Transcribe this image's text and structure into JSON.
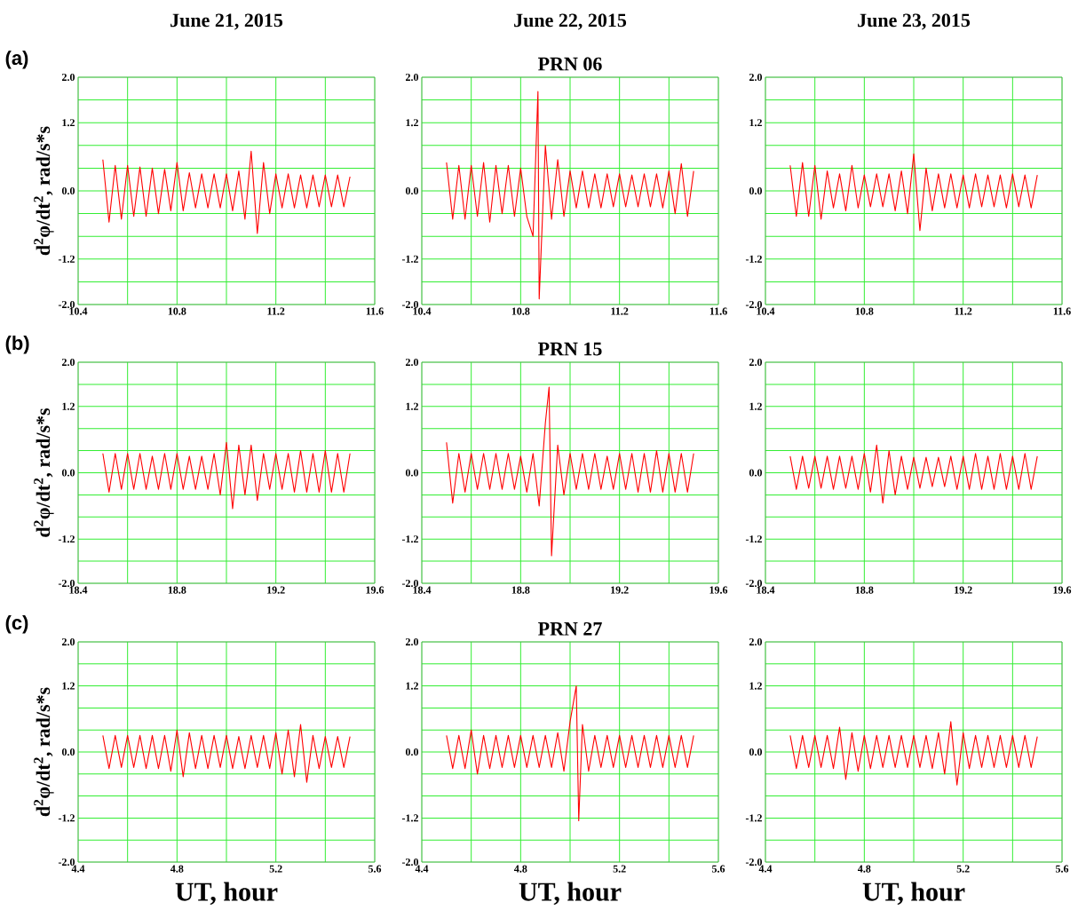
{
  "chart_data": [
    {
      "type": "line",
      "title": "June 21, 2015",
      "annotations": [
        "(a)"
      ],
      "ylabel": "d$^{2}$φ/dt$^{2}$,  rad/s*s",
      "grid": true,
      "xlim": [
        10.4,
        11.6
      ],
      "ylim": [
        -2.0,
        2.0
      ],
      "xticks": [
        10.4,
        {
          "value": 10.6,
          "label": null
        },
        10.8,
        {
          "value": 11.0,
          "label": null
        },
        11.2,
        {
          "value": 11.4,
          "label": null
        },
        11.6
      ],
      "yticks": [
        {
          "value": -2.0,
          "label": "-2.0"
        },
        {
          "value": -1.6,
          "label": null
        },
        {
          "value": -1.2,
          "label": "-1.2"
        },
        {
          "value": -0.8,
          "label": null
        },
        {
          "value": -0.4,
          "label": null
        },
        {
          "value": 0,
          "label": "0.0"
        },
        {
          "value": 0.4,
          "label": null
        },
        {
          "value": 0.8,
          "label": null
        },
        {
          "value": 1.2,
          "label": "1.2"
        },
        {
          "value": 1.6,
          "label": null
        },
        {
          "value": 2.0,
          "label": "2.0"
        }
      ],
      "series": [
        {
          "color": "#ff0000",
          "x": [
            10.5,
            10.525,
            10.55,
            10.575,
            10.6,
            10.625,
            10.65,
            10.675,
            10.7,
            10.725,
            10.75,
            10.775,
            10.8,
            10.825,
            10.85,
            10.875,
            10.9,
            10.925,
            10.95,
            10.975,
            11.0,
            11.025,
            11.05,
            11.075,
            11.1,
            11.125,
            11.15,
            11.175,
            11.2,
            11.225,
            11.25,
            11.275,
            11.3,
            11.325,
            11.35,
            11.375,
            11.4,
            11.425,
            11.45,
            11.475,
            11.5
          ],
          "values": [
            0.55,
            -0.55,
            0.45,
            -0.5,
            0.45,
            -0.45,
            0.42,
            -0.45,
            0.4,
            -0.4,
            0.38,
            -0.35,
            0.5,
            -0.35,
            0.32,
            -0.3,
            0.3,
            -0.3,
            0.3,
            -0.3,
            0.3,
            -0.35,
            0.35,
            -0.5,
            0.7,
            -0.75,
            0.5,
            -0.4,
            0.3,
            -0.3,
            0.3,
            -0.3,
            0.28,
            -0.3,
            0.28,
            -0.28,
            0.28,
            -0.28,
            0.28,
            -0.28,
            0.25
          ]
        }
      ]
    },
    {
      "type": "line",
      "title": "June 22, 2015",
      "subtitle": "PRN 06",
      "grid": true,
      "xlim": [
        10.4,
        11.6
      ],
      "ylim": [
        -2.0,
        2.0
      ],
      "xticks": [
        10.4,
        {
          "value": 10.6,
          "label": null
        },
        10.8,
        {
          "value": 11.0,
          "label": null
        },
        11.2,
        {
          "value": 11.4,
          "label": null
        },
        11.6
      ],
      "yticks": [
        {
          "value": -2.0,
          "label": "-2.0"
        },
        {
          "value": -1.6,
          "label": null
        },
        {
          "value": -1.2,
          "label": "-1.2"
        },
        {
          "value": -0.8,
          "label": null
        },
        {
          "value": -0.4,
          "label": null
        },
        {
          "value": 0,
          "label": "0.0"
        },
        {
          "value": 0.4,
          "label": null
        },
        {
          "value": 0.8,
          "label": null
        },
        {
          "value": 1.2,
          "label": "1.2"
        },
        {
          "value": 1.6,
          "label": null
        },
        {
          "value": 2.0,
          "label": "2.0"
        }
      ],
      "series": [
        {
          "color": "#ff0000",
          "x": [
            10.5,
            10.525,
            10.55,
            10.575,
            10.6,
            10.625,
            10.65,
            10.675,
            10.7,
            10.725,
            10.75,
            10.775,
            10.8,
            10.825,
            10.85,
            10.87,
            10.875,
            10.9,
            10.925,
            10.95,
            10.975,
            11.0,
            11.025,
            11.05,
            11.075,
            11.1,
            11.125,
            11.15,
            11.175,
            11.2,
            11.225,
            11.25,
            11.275,
            11.3,
            11.325,
            11.35,
            11.375,
            11.4,
            11.425,
            11.45,
            11.475,
            11.5
          ],
          "values": [
            0.5,
            -0.5,
            0.45,
            -0.5,
            0.45,
            -0.45,
            0.5,
            -0.55,
            0.45,
            -0.4,
            0.45,
            -0.45,
            0.4,
            -0.45,
            -0.8,
            1.75,
            -1.9,
            0.8,
            -0.5,
            0.55,
            -0.45,
            0.35,
            -0.3,
            0.35,
            -0.3,
            0.3,
            -0.3,
            0.3,
            -0.28,
            0.3,
            -0.28,
            0.28,
            -0.28,
            0.3,
            -0.28,
            0.3,
            -0.3,
            0.35,
            -0.4,
            0.48,
            -0.45,
            0.35
          ]
        }
      ]
    },
    {
      "type": "line",
      "title": "June 23, 2015",
      "grid": true,
      "xlim": [
        10.4,
        11.6
      ],
      "ylim": [
        -2.0,
        2.0
      ],
      "xticks": [
        10.4,
        {
          "value": 10.6,
          "label": null
        },
        10.8,
        {
          "value": 11.0,
          "label": null
        },
        11.2,
        {
          "value": 11.4,
          "label": null
        },
        11.6
      ],
      "yticks": [
        {
          "value": -2.0,
          "label": "-2.0"
        },
        {
          "value": -1.6,
          "label": null
        },
        {
          "value": -1.2,
          "label": "-1.2"
        },
        {
          "value": -0.8,
          "label": null
        },
        {
          "value": -0.4,
          "label": null
        },
        {
          "value": 0,
          "label": "0.0"
        },
        {
          "value": 0.4,
          "label": null
        },
        {
          "value": 0.8,
          "label": null
        },
        {
          "value": 1.2,
          "label": "1.2"
        },
        {
          "value": 1.6,
          "label": null
        },
        {
          "value": 2.0,
          "label": "2.0"
        }
      ],
      "series": [
        {
          "color": "#ff0000",
          "x": [
            10.5,
            10.525,
            10.55,
            10.575,
            10.6,
            10.625,
            10.65,
            10.675,
            10.7,
            10.725,
            10.75,
            10.775,
            10.8,
            10.825,
            10.85,
            10.875,
            10.9,
            10.925,
            10.95,
            10.975,
            11.0,
            11.025,
            11.05,
            11.075,
            11.1,
            11.125,
            11.15,
            11.175,
            11.2,
            11.225,
            11.25,
            11.275,
            11.3,
            11.325,
            11.35,
            11.375,
            11.4,
            11.425,
            11.45,
            11.475,
            11.5
          ],
          "values": [
            0.45,
            -0.45,
            0.5,
            -0.45,
            0.45,
            -0.5,
            0.35,
            -0.3,
            0.3,
            -0.35,
            0.45,
            -0.3,
            0.28,
            -0.28,
            0.3,
            -0.28,
            0.3,
            -0.35,
            0.35,
            -0.4,
            0.65,
            -0.7,
            0.4,
            -0.35,
            0.3,
            -0.3,
            0.3,
            -0.3,
            0.28,
            -0.3,
            0.3,
            -0.28,
            0.28,
            -0.28,
            0.28,
            -0.3,
            0.3,
            -0.28,
            0.28,
            -0.3,
            0.28
          ]
        }
      ]
    },
    {
      "type": "line",
      "annotations": [
        "(b)"
      ],
      "ylabel": "d$^{2}$φ/dt$^{2}$,  rad/s*s",
      "grid": true,
      "xlim": [
        18.4,
        19.6
      ],
      "ylim": [
        -2.0,
        2.0
      ],
      "xticks": [
        18.4,
        {
          "value": 18.6,
          "label": null
        },
        18.8,
        {
          "value": 19.0,
          "label": null
        },
        19.2,
        {
          "value": 19.4,
          "label": null
        },
        19.6
      ],
      "yticks": [
        {
          "value": -2.0,
          "label": "-2.0"
        },
        {
          "value": -1.6,
          "label": null
        },
        {
          "value": -1.2,
          "label": "-1.2"
        },
        {
          "value": -0.8,
          "label": null
        },
        {
          "value": -0.4,
          "label": null
        },
        {
          "value": 0,
          "label": "0.0"
        },
        {
          "value": 0.4,
          "label": null
        },
        {
          "value": 0.8,
          "label": null
        },
        {
          "value": 1.2,
          "label": "1.2"
        },
        {
          "value": 1.6,
          "label": null
        },
        {
          "value": 2.0,
          "label": "2.0"
        }
      ],
      "series": [
        {
          "color": "#ff0000",
          "x": [
            18.5,
            18.525,
            18.55,
            18.575,
            18.6,
            18.625,
            18.65,
            18.675,
            18.7,
            18.725,
            18.75,
            18.775,
            18.8,
            18.825,
            18.85,
            18.875,
            18.9,
            18.925,
            18.95,
            18.975,
            19.0,
            19.025,
            19.05,
            19.075,
            19.1,
            19.125,
            19.15,
            19.175,
            19.2,
            19.225,
            19.25,
            19.275,
            19.3,
            19.325,
            19.35,
            19.375,
            19.4,
            19.425,
            19.45,
            19.475,
            19.5
          ],
          "values": [
            0.35,
            -0.35,
            0.35,
            -0.3,
            0.35,
            -0.3,
            0.35,
            -0.3,
            0.3,
            -0.3,
            0.35,
            -0.3,
            0.35,
            -0.3,
            0.3,
            -0.3,
            0.3,
            -0.3,
            0.35,
            -0.4,
            0.55,
            -0.65,
            0.5,
            -0.4,
            0.5,
            -0.5,
            0.35,
            -0.3,
            0.35,
            -0.3,
            0.35,
            -0.35,
            0.4,
            -0.35,
            0.35,
            -0.35,
            0.4,
            -0.35,
            0.35,
            -0.35,
            0.35
          ]
        }
      ]
    },
    {
      "type": "line",
      "subtitle": "PRN 15",
      "grid": true,
      "xlim": [
        18.4,
        19.6
      ],
      "ylim": [
        -2.0,
        2.0
      ],
      "xticks": [
        18.4,
        {
          "value": 18.6,
          "label": null
        },
        18.8,
        {
          "value": 19.0,
          "label": null
        },
        19.2,
        {
          "value": 19.4,
          "label": null
        },
        19.6
      ],
      "yticks": [
        {
          "value": -2.0,
          "label": "-2.0"
        },
        {
          "value": -1.6,
          "label": null
        },
        {
          "value": -1.2,
          "label": "-1.2"
        },
        {
          "value": -0.8,
          "label": null
        },
        {
          "value": -0.4,
          "label": null
        },
        {
          "value": 0,
          "label": "0.0"
        },
        {
          "value": 0.4,
          "label": null
        },
        {
          "value": 0.8,
          "label": null
        },
        {
          "value": 1.2,
          "label": "1.2"
        },
        {
          "value": 1.6,
          "label": null
        },
        {
          "value": 2.0,
          "label": "2.0"
        }
      ],
      "series": [
        {
          "color": "#ff0000",
          "x": [
            18.5,
            18.525,
            18.55,
            18.575,
            18.6,
            18.625,
            18.65,
            18.675,
            18.7,
            18.725,
            18.75,
            18.775,
            18.8,
            18.825,
            18.85,
            18.875,
            18.9,
            18.915,
            18.925,
            18.95,
            18.975,
            19.0,
            19.025,
            19.05,
            19.075,
            19.1,
            19.125,
            19.15,
            19.175,
            19.2,
            19.225,
            19.25,
            19.275,
            19.3,
            19.325,
            19.35,
            19.375,
            19.4,
            19.425,
            19.45,
            19.475,
            19.5
          ],
          "values": [
            0.55,
            -0.55,
            0.35,
            -0.35,
            0.35,
            -0.3,
            0.35,
            -0.3,
            0.35,
            -0.3,
            0.35,
            -0.3,
            0.3,
            -0.35,
            0.35,
            -0.6,
            0.9,
            1.55,
            -1.5,
            0.5,
            -0.4,
            0.35,
            -0.3,
            0.35,
            -0.3,
            0.35,
            -0.3,
            0.3,
            -0.3,
            0.35,
            -0.3,
            0.35,
            -0.35,
            0.35,
            -0.35,
            0.4,
            -0.35,
            0.35,
            -0.35,
            0.35,
            -0.35,
            0.35
          ]
        }
      ]
    },
    {
      "type": "line",
      "grid": true,
      "xlim": [
        18.4,
        19.6
      ],
      "ylim": [
        -2.0,
        2.0
      ],
      "xticks": [
        18.4,
        {
          "value": 18.6,
          "label": null
        },
        18.8,
        {
          "value": 19.0,
          "label": null
        },
        19.2,
        {
          "value": 19.4,
          "label": null
        },
        19.6
      ],
      "yticks": [
        {
          "value": -2.0,
          "label": "-2.0"
        },
        {
          "value": -1.6,
          "label": null
        },
        {
          "value": -1.2,
          "label": "-1.2"
        },
        {
          "value": -0.8,
          "label": null
        },
        {
          "value": -0.4,
          "label": null
        },
        {
          "value": 0,
          "label": "0.0"
        },
        {
          "value": 0.4,
          "label": null
        },
        {
          "value": 0.8,
          "label": null
        },
        {
          "value": 1.2,
          "label": "1.2"
        },
        {
          "value": 1.6,
          "label": null
        },
        {
          "value": 2.0,
          "label": "2.0"
        }
      ],
      "series": [
        {
          "color": "#ff0000",
          "x": [
            18.5,
            18.525,
            18.55,
            18.575,
            18.6,
            18.625,
            18.65,
            18.675,
            18.7,
            18.725,
            18.75,
            18.775,
            18.8,
            18.825,
            18.85,
            18.875,
            18.9,
            18.925,
            18.95,
            18.975,
            19.0,
            19.025,
            19.05,
            19.075,
            19.1,
            19.125,
            19.15,
            19.175,
            19.2,
            19.225,
            19.25,
            19.275,
            19.3,
            19.325,
            19.35,
            19.375,
            19.4,
            19.425,
            19.45,
            19.475,
            19.5
          ],
          "values": [
            0.3,
            -0.3,
            0.3,
            -0.28,
            0.3,
            -0.28,
            0.3,
            -0.3,
            0.3,
            -0.28,
            0.3,
            -0.3,
            0.35,
            -0.35,
            0.5,
            -0.55,
            0.4,
            -0.4,
            0.3,
            -0.3,
            0.28,
            -0.28,
            0.28,
            -0.25,
            0.28,
            -0.25,
            0.3,
            -0.3,
            0.3,
            -0.3,
            0.35,
            -0.3,
            0.3,
            -0.3,
            0.35,
            -0.3,
            0.3,
            -0.3,
            0.35,
            -0.3,
            0.3
          ]
        }
      ]
    },
    {
      "type": "line",
      "annotations": [
        "(c)"
      ],
      "ylabel": "d$^{2}$φ/dt$^{2}$,  rad/s*s",
      "xlabel": "UT, hour",
      "grid": true,
      "xlim": [
        4.4,
        5.6
      ],
      "ylim": [
        -2.0,
        2.0
      ],
      "xticks": [
        4.4,
        {
          "value": 4.6,
          "label": null
        },
        4.8,
        {
          "value": 5.0,
          "label": null
        },
        5.2,
        {
          "value": 5.4,
          "label": null
        },
        5.6
      ],
      "yticks": [
        {
          "value": -2.0,
          "label": "-2.0"
        },
        {
          "value": -1.6,
          "label": null
        },
        {
          "value": -1.2,
          "label": "-1.2"
        },
        {
          "value": -0.8,
          "label": null
        },
        {
          "value": -0.4,
          "label": null
        },
        {
          "value": 0,
          "label": "0.0"
        },
        {
          "value": 0.4,
          "label": null
        },
        {
          "value": 0.8,
          "label": null
        },
        {
          "value": 1.2,
          "label": "1.2"
        },
        {
          "value": 1.6,
          "label": null
        },
        {
          "value": 2.0,
          "label": "2.0"
        }
      ],
      "series": [
        {
          "color": "#ff0000",
          "x": [
            4.5,
            4.525,
            4.55,
            4.575,
            4.6,
            4.625,
            4.65,
            4.675,
            4.7,
            4.725,
            4.75,
            4.775,
            4.8,
            4.825,
            4.85,
            4.875,
            4.9,
            4.925,
            4.95,
            4.975,
            5.0,
            5.025,
            5.05,
            5.075,
            5.1,
            5.125,
            5.15,
            5.175,
            5.2,
            5.225,
            5.25,
            5.275,
            5.3,
            5.325,
            5.35,
            5.375,
            5.4,
            5.425,
            5.45,
            5.475,
            5.5
          ],
          "values": [
            0.3,
            -0.3,
            0.3,
            -0.28,
            0.3,
            -0.28,
            0.3,
            -0.3,
            0.3,
            -0.3,
            0.3,
            -0.35,
            0.4,
            -0.45,
            0.35,
            -0.3,
            0.3,
            -0.3,
            0.3,
            -0.28,
            0.3,
            -0.3,
            0.28,
            -0.3,
            0.3,
            -0.28,
            0.3,
            -0.3,
            0.35,
            -0.4,
            0.4,
            -0.45,
            0.5,
            -0.55,
            0.3,
            -0.3,
            0.28,
            -0.28,
            0.28,
            -0.28,
            0.28
          ]
        }
      ]
    },
    {
      "type": "line",
      "subtitle": "PRN 27",
      "xlabel": "UT, hour",
      "grid": true,
      "xlim": [
        4.4,
        5.6
      ],
      "ylim": [
        -2.0,
        2.0
      ],
      "xticks": [
        4.4,
        {
          "value": 4.6,
          "label": null
        },
        4.8,
        {
          "value": 5.0,
          "label": null
        },
        5.2,
        {
          "value": 5.4,
          "label": null
        },
        5.6
      ],
      "yticks": [
        {
          "value": -2.0,
          "label": "-2.0"
        },
        {
          "value": -1.6,
          "label": null
        },
        {
          "value": -1.2,
          "label": "-1.2"
        },
        {
          "value": -0.8,
          "label": null
        },
        {
          "value": -0.4,
          "label": null
        },
        {
          "value": 0,
          "label": "0.0"
        },
        {
          "value": 0.4,
          "label": null
        },
        {
          "value": 0.8,
          "label": null
        },
        {
          "value": 1.2,
          "label": "1.2"
        },
        {
          "value": 1.6,
          "label": null
        },
        {
          "value": 2.0,
          "label": "2.0"
        }
      ],
      "series": [
        {
          "color": "#ff0000",
          "x": [
            4.5,
            4.525,
            4.55,
            4.575,
            4.6,
            4.625,
            4.65,
            4.675,
            4.7,
            4.725,
            4.75,
            4.775,
            4.8,
            4.825,
            4.85,
            4.875,
            4.9,
            4.925,
            4.95,
            4.975,
            5.0,
            5.025,
            5.035,
            5.05,
            5.075,
            5.1,
            5.125,
            5.15,
            5.175,
            5.2,
            5.225,
            5.25,
            5.275,
            5.3,
            5.325,
            5.35,
            5.375,
            5.4,
            5.425,
            5.45,
            5.475,
            5.5
          ],
          "values": [
            0.3,
            -0.3,
            0.3,
            -0.3,
            0.4,
            -0.4,
            0.3,
            -0.3,
            0.3,
            -0.28,
            0.3,
            -0.28,
            0.3,
            -0.28,
            0.3,
            -0.28,
            0.3,
            -0.28,
            0.35,
            -0.35,
            0.55,
            1.2,
            -1.25,
            0.5,
            -0.35,
            0.3,
            -0.28,
            0.3,
            -0.28,
            0.3,
            -0.28,
            0.3,
            -0.28,
            0.3,
            -0.28,
            0.3,
            -0.28,
            0.3,
            -0.28,
            0.3,
            -0.28,
            0.3
          ]
        }
      ]
    },
    {
      "type": "line",
      "xlabel": "UT, hour",
      "grid": true,
      "xlim": [
        4.4,
        5.6
      ],
      "ylim": [
        -2.0,
        2.0
      ],
      "xticks": [
        4.4,
        {
          "value": 4.6,
          "label": null
        },
        4.8,
        {
          "value": 5.0,
          "label": null
        },
        5.2,
        {
          "value": 5.4,
          "label": null
        },
        5.6
      ],
      "yticks": [
        {
          "value": -2.0,
          "label": "-2.0"
        },
        {
          "value": -1.6,
          "label": null
        },
        {
          "value": -1.2,
          "label": "-1.2"
        },
        {
          "value": -0.8,
          "label": null
        },
        {
          "value": -0.4,
          "label": null
        },
        {
          "value": 0,
          "label": "0.0"
        },
        {
          "value": 0.4,
          "label": null
        },
        {
          "value": 0.8,
          "label": null
        },
        {
          "value": 1.2,
          "label": "1.2"
        },
        {
          "value": 1.6,
          "label": null
        },
        {
          "value": 2.0,
          "label": "2.0"
        }
      ],
      "series": [
        {
          "color": "#ff0000",
          "x": [
            4.5,
            4.525,
            4.55,
            4.575,
            4.6,
            4.625,
            4.65,
            4.675,
            4.7,
            4.725,
            4.75,
            4.775,
            4.8,
            4.825,
            4.85,
            4.875,
            4.9,
            4.925,
            4.95,
            4.975,
            5.0,
            5.025,
            5.05,
            5.075,
            5.1,
            5.125,
            5.15,
            5.175,
            5.2,
            5.225,
            5.25,
            5.275,
            5.3,
            5.325,
            5.35,
            5.375,
            5.4,
            5.425,
            5.45,
            5.475,
            5.5
          ],
          "values": [
            0.3,
            -0.3,
            0.3,
            -0.28,
            0.3,
            -0.28,
            0.3,
            -0.3,
            0.45,
            -0.5,
            0.35,
            -0.35,
            0.3,
            -0.3,
            0.3,
            -0.28,
            0.3,
            -0.28,
            0.3,
            -0.28,
            0.3,
            -0.28,
            0.3,
            -0.3,
            0.35,
            -0.4,
            0.55,
            -0.6,
            0.35,
            -0.3,
            0.3,
            -0.28,
            0.3,
            -0.28,
            0.3,
            -0.28,
            0.3,
            -0.28,
            0.3,
            -0.28,
            0.28
          ]
        }
      ]
    }
  ]
}
